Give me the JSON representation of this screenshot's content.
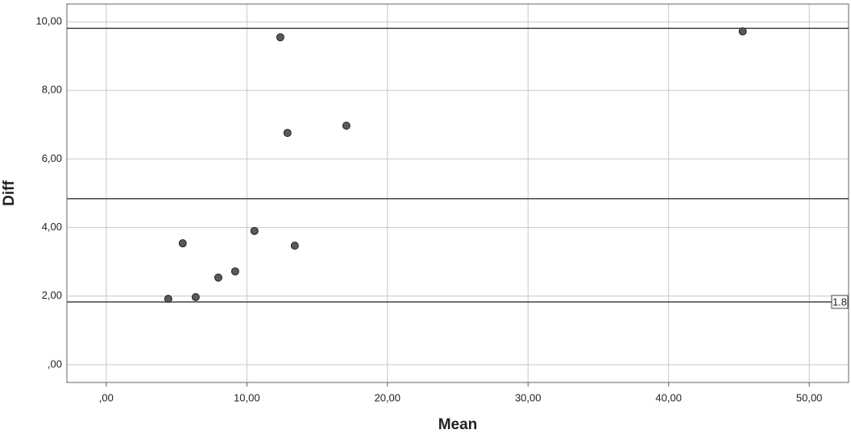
{
  "chart_data": {
    "type": "scatter",
    "x_label": "Mean",
    "y_label": "Diff",
    "x": [
      4.41,
      5.44,
      6.36,
      7.97,
      9.17,
      10.54,
      12.38,
      12.89,
      13.41,
      17.08,
      45.27
    ],
    "values": [
      1.92,
      3.54,
      1.97,
      2.54,
      2.72,
      3.9,
      9.55,
      6.76,
      3.47,
      6.97,
      9.72
    ],
    "color": "#5a5a5a",
    "xlim": [
      -2.8,
      52.8
    ],
    "ylim": [
      -0.52,
      10.52
    ],
    "xticks": [
      {
        "value": 0,
        "label": ",00"
      },
      {
        "value": 10,
        "label": "10,00"
      },
      {
        "value": 20,
        "label": "20,00"
      },
      {
        "value": 30,
        "label": "30,00"
      },
      {
        "value": 40,
        "label": "40,00"
      },
      {
        "value": 50,
        "label": "50,00"
      }
    ],
    "yticks": [
      {
        "value": 0,
        "label": ",00"
      },
      {
        "value": 2,
        "label": "2,00"
      },
      {
        "value": 4,
        "label": "4,00"
      },
      {
        "value": 6,
        "label": "6,00"
      },
      {
        "value": 8,
        "label": "8,00"
      },
      {
        "value": 10,
        "label": "10,00"
      }
    ],
    "grid": true,
    "reference_lines": [
      {
        "value": 9.81
      },
      {
        "value": 4.84
      },
      {
        "value": 1.83,
        "label": "1.8"
      }
    ]
  }
}
